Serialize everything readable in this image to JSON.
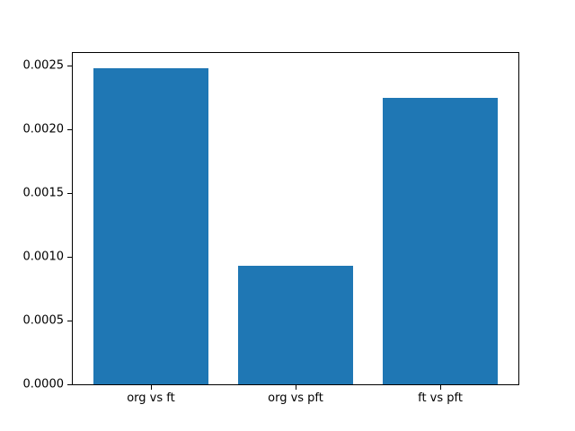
{
  "chart_data": {
    "type": "bar",
    "categories": [
      "org vs ft",
      "org vs pft",
      "ft vs pft"
    ],
    "values": [
      0.00248,
      0.00093,
      0.00225
    ],
    "title": "",
    "xlabel": "",
    "ylabel": "",
    "ylim": [
      0,
      0.0026
    ],
    "yticks": [
      0.0,
      0.0005,
      0.001,
      0.0015,
      0.002,
      0.0025
    ],
    "ytick_labels": [
      "0.0000",
      "0.0005",
      "0.0010",
      "0.0015",
      "0.0020",
      "0.0025"
    ],
    "bar_color": "#1f77b4",
    "bar_width_fraction": 0.8,
    "grid": false,
    "legend": null
  }
}
